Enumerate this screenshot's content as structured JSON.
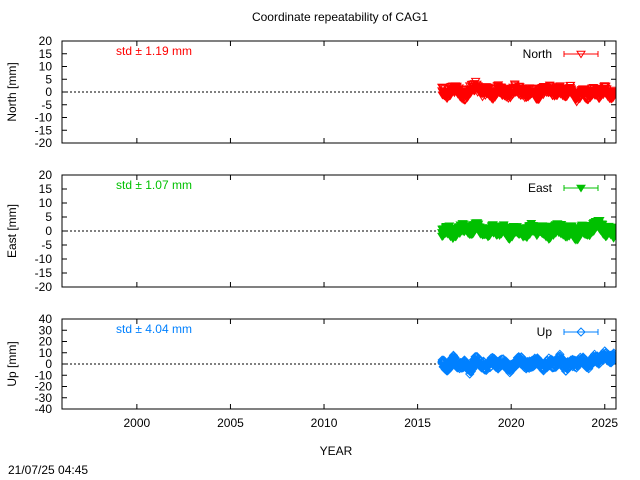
{
  "page": {
    "title": "Coordinate repeatability of CAG1",
    "xlabel": "YEAR",
    "timestamp": "21/07/25 04:45"
  },
  "chart_data": [
    {
      "type": "scatter",
      "panel": "north",
      "ylabel": "North [mm]",
      "legend": "North",
      "legend_placement": "top-right",
      "std_label": "std ± 1.19 mm",
      "color": "#ff0000",
      "marker": "triangle-down-open",
      "xlim": [
        1996,
        2025.6
      ],
      "ylim": [
        -20,
        20
      ],
      "yticks": [
        -20,
        -15,
        -10,
        -5,
        0,
        5,
        10,
        15,
        20
      ],
      "xticks": [
        2000,
        2005,
        2010,
        2015,
        2020,
        2025
      ],
      "zero_line": true,
      "data_span": [
        2016.2,
        2025.6
      ],
      "series": [
        {
          "name": "North",
          "x": [
            2016.3,
            2016.6,
            2016.9,
            2017.2,
            2017.5,
            2017.8,
            2018.1,
            2018.4,
            2018.7,
            2019.0,
            2019.3,
            2019.6,
            2019.9,
            2020.2,
            2020.5,
            2020.8,
            2021.1,
            2021.4,
            2021.7,
            2022.0,
            2022.3,
            2022.6,
            2022.9,
            2023.2,
            2023.5,
            2023.8,
            2024.1,
            2024.4,
            2024.7,
            2025.0,
            2025.3,
            2025.5
          ],
          "y": [
            0.5,
            -1.0,
            1.5,
            0.2,
            -2.0,
            1.0,
            2.5,
            -0.5,
            0.8,
            -1.5,
            1.2,
            0.0,
            -1.2,
            1.8,
            0.3,
            -0.8,
            1.0,
            -1.8,
            0.6,
            1.5,
            -0.4,
            0.9,
            -1.1,
            1.3,
            -2.2,
            0.2,
            -1.6,
            0.7,
            -0.9,
            1.1,
            -1.4,
            -0.6
          ]
        }
      ]
    },
    {
      "type": "scatter",
      "panel": "east",
      "ylabel": "East [mm]",
      "legend": "East",
      "legend_placement": "top-right",
      "std_label": "std ± 1.07 mm",
      "color": "#00c000",
      "marker": "triangle-down-filled",
      "xlim": [
        1996,
        2025.6
      ],
      "ylim": [
        -20,
        20
      ],
      "yticks": [
        -20,
        -15,
        -10,
        -5,
        0,
        5,
        10,
        15,
        20
      ],
      "xticks": [
        2000,
        2005,
        2010,
        2015,
        2020,
        2025
      ],
      "zero_line": true,
      "data_span": [
        2016.2,
        2025.6
      ],
      "series": [
        {
          "name": "East",
          "x": [
            2016.3,
            2016.6,
            2016.9,
            2017.2,
            2017.5,
            2017.8,
            2018.1,
            2018.4,
            2018.7,
            2019.0,
            2019.3,
            2019.6,
            2019.9,
            2020.2,
            2020.5,
            2020.8,
            2021.1,
            2021.4,
            2021.7,
            2022.0,
            2022.3,
            2022.6,
            2022.9,
            2023.2,
            2023.5,
            2023.8,
            2024.1,
            2024.4,
            2024.7,
            2025.0,
            2025.3,
            2025.5
          ],
          "y": [
            -0.5,
            0.8,
            -1.2,
            0.4,
            1.5,
            -0.8,
            2.2,
            0.3,
            -1.0,
            0.9,
            -0.4,
            1.2,
            -1.5,
            0.6,
            0.0,
            -0.9,
            1.4,
            -0.2,
            0.7,
            -1.3,
            0.5,
            1.1,
            -0.7,
            0.3,
            -2.0,
            0.8,
            -0.5,
            1.6,
            2.5,
            -0.8,
            0.4,
            -1.2
          ]
        }
      ]
    },
    {
      "type": "scatter",
      "panel": "up",
      "ylabel": "Up [mm]",
      "legend": "Up",
      "legend_placement": "top-right",
      "std_label": "std ± 4.04 mm",
      "color": "#0080ff",
      "marker": "diamond-open",
      "xlim": [
        1996,
        2025.6
      ],
      "ylim": [
        -40,
        40
      ],
      "yticks": [
        -40,
        -30,
        -20,
        -10,
        0,
        10,
        20,
        30,
        40
      ],
      "xticks": [
        2000,
        2005,
        2010,
        2015,
        2020,
        2025
      ],
      "zero_line": true,
      "data_span": [
        2016.2,
        2025.6
      ],
      "series": [
        {
          "name": "Up",
          "x": [
            2016.3,
            2016.6,
            2016.9,
            2017.2,
            2017.5,
            2017.8,
            2018.1,
            2018.4,
            2018.7,
            2019.0,
            2019.3,
            2019.6,
            2019.9,
            2020.2,
            2020.5,
            2020.8,
            2021.1,
            2021.4,
            2021.7,
            2022.0,
            2022.3,
            2022.6,
            2022.9,
            2023.2,
            2023.5,
            2023.8,
            2024.1,
            2024.4,
            2024.7,
            2025.0,
            2025.3,
            2025.5
          ],
          "y": [
            2.0,
            -4.0,
            5.0,
            -2.0,
            1.0,
            -6.0,
            4.0,
            0.0,
            -3.0,
            3.0,
            -1.0,
            2.0,
            -5.0,
            1.0,
            4.0,
            -2.0,
            0.0,
            3.0,
            -4.0,
            2.0,
            -1.0,
            5.0,
            -3.0,
            1.0,
            0.0,
            4.0,
            -2.0,
            6.0,
            3.0,
            8.0,
            4.0,
            7.0
          ]
        }
      ]
    }
  ]
}
